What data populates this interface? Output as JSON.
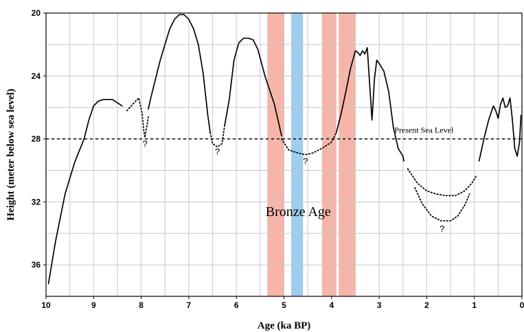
{
  "chart_data": {
    "type": "line",
    "title": "",
    "xlabel": "Age (ka BP)",
    "ylabel": "Height (meter below sea level)",
    "xlim": [
      10,
      0
    ],
    "ylim": [
      38,
      20
    ],
    "x_ticks": [
      10,
      9,
      8,
      7,
      6,
      5,
      4,
      3,
      2,
      1,
      0
    ],
    "y_ticks": [
      20,
      24,
      28,
      32,
      36
    ],
    "grid": true,
    "colors": {
      "pink_band": "#f4a89a",
      "blue_band": "#8fc4ea",
      "line": "#000000",
      "grid": "#c8c8c8"
    },
    "bands": [
      {
        "x0": 5.35,
        "x1": 5.0,
        "color": "pink"
      },
      {
        "x0": 4.85,
        "x1": 4.6,
        "color": "blue"
      },
      {
        "x0": 4.2,
        "x1": 3.9,
        "color": "pink"
      },
      {
        "x0": 3.85,
        "x1": 3.5,
        "color": "pink"
      }
    ],
    "reference_line": {
      "y": 28,
      "label": "Present Sea Level"
    },
    "annotations": [
      {
        "text": "Bronze Age",
        "x": 4.7,
        "y": 32.9
      },
      {
        "text": "?",
        "x": 7.92,
        "y": 28.5
      },
      {
        "text": "?",
        "x": 6.4,
        "y": 29.0
      },
      {
        "text": "?",
        "x": 4.55,
        "y": 29.6
      },
      {
        "text": "?",
        "x": 1.68,
        "y": 33.9
      }
    ],
    "series": [
      {
        "style": "solid",
        "x": [
          9.95,
          9.8,
          9.6,
          9.4,
          9.2,
          9.1,
          9.0,
          8.9,
          8.8,
          8.6,
          8.5,
          8.4
        ],
        "y": [
          37.2,
          34.5,
          31.5,
          29.5,
          28.0,
          26.8,
          25.9,
          25.6,
          25.5,
          25.5,
          25.7,
          25.9
        ]
      },
      {
        "style": "dotted",
        "x": [
          8.3,
          8.15,
          8.05,
          7.98,
          7.95,
          7.92,
          7.9,
          7.87,
          7.85
        ],
        "y": [
          26.2,
          25.7,
          25.4,
          26.4,
          27.4,
          27.9,
          27.5,
          27.0,
          26.6
        ]
      },
      {
        "style": "solid",
        "x": [
          7.85,
          7.8,
          7.6,
          7.4,
          7.3,
          7.2,
          7.1,
          7.0,
          6.9,
          6.8,
          6.7,
          6.6,
          6.55
        ],
        "y": [
          26.1,
          25.4,
          23.0,
          21.0,
          20.4,
          20.1,
          20.1,
          20.4,
          21.0,
          22.0,
          23.8,
          26.5,
          27.6
        ]
      },
      {
        "style": "dotted",
        "x": [
          6.55,
          6.5,
          6.4,
          6.3,
          6.28,
          6.25
        ],
        "y": [
          27.6,
          28.3,
          28.5,
          28.3,
          27.8,
          27.2
        ]
      },
      {
        "style": "solid",
        "x": [
          6.25,
          6.15,
          6.05,
          5.95,
          5.85,
          5.75,
          5.65,
          5.55,
          5.4,
          5.2,
          5.05
        ],
        "y": [
          27.2,
          25.5,
          23.0,
          21.9,
          21.6,
          21.6,
          21.7,
          22.3,
          24.0,
          25.8,
          27.8
        ]
      },
      {
        "style": "dotted",
        "x": [
          5.05,
          4.9,
          4.7,
          4.55,
          4.4,
          4.2,
          4.0,
          3.9
        ],
        "y": [
          28.0,
          28.7,
          28.9,
          29.0,
          28.9,
          28.6,
          28.2,
          27.6
        ]
      },
      {
        "style": "solid",
        "x": [
          3.9,
          3.8,
          3.7,
          3.6,
          3.5,
          3.45,
          3.4,
          3.35,
          3.3,
          3.25,
          3.2,
          3.15,
          3.1,
          3.05,
          3.0,
          2.9,
          2.8,
          2.7,
          2.6,
          2.5,
          2.48
        ],
        "y": [
          27.6,
          26.4,
          25.0,
          23.5,
          22.4,
          22.5,
          22.7,
          22.4,
          22.6,
          22.2,
          24.5,
          26.8,
          24.2,
          23.0,
          23.2,
          23.7,
          25.0,
          27.3,
          28.6,
          29.1,
          29.4
        ]
      },
      {
        "style": "dotted",
        "x": [
          2.4,
          2.2,
          2.0,
          1.8,
          1.6,
          1.4,
          1.2,
          1.05,
          0.95
        ],
        "y": [
          29.9,
          30.8,
          31.3,
          31.5,
          31.6,
          31.6,
          31.3,
          30.8,
          30.3
        ]
      },
      {
        "style": "dotted",
        "x": [
          2.25,
          2.1,
          1.9,
          1.7,
          1.5,
          1.35,
          1.2,
          1.1
        ],
        "y": [
          31.1,
          32.1,
          32.9,
          33.2,
          33.2,
          32.9,
          32.2,
          31.5
        ]
      },
      {
        "style": "solid",
        "x": [
          0.9,
          0.8,
          0.7,
          0.6,
          0.55,
          0.5,
          0.45,
          0.4,
          0.35,
          0.3,
          0.25,
          0.2,
          0.15,
          0.1,
          0.05,
          0.02
        ],
        "y": [
          29.4,
          28.0,
          26.8,
          25.9,
          26.2,
          26.7,
          25.8,
          25.4,
          26.0,
          25.9,
          25.4,
          26.8,
          28.6,
          29.1,
          28.2,
          26.5
        ]
      }
    ],
    "reference_line_dummy": null
  }
}
